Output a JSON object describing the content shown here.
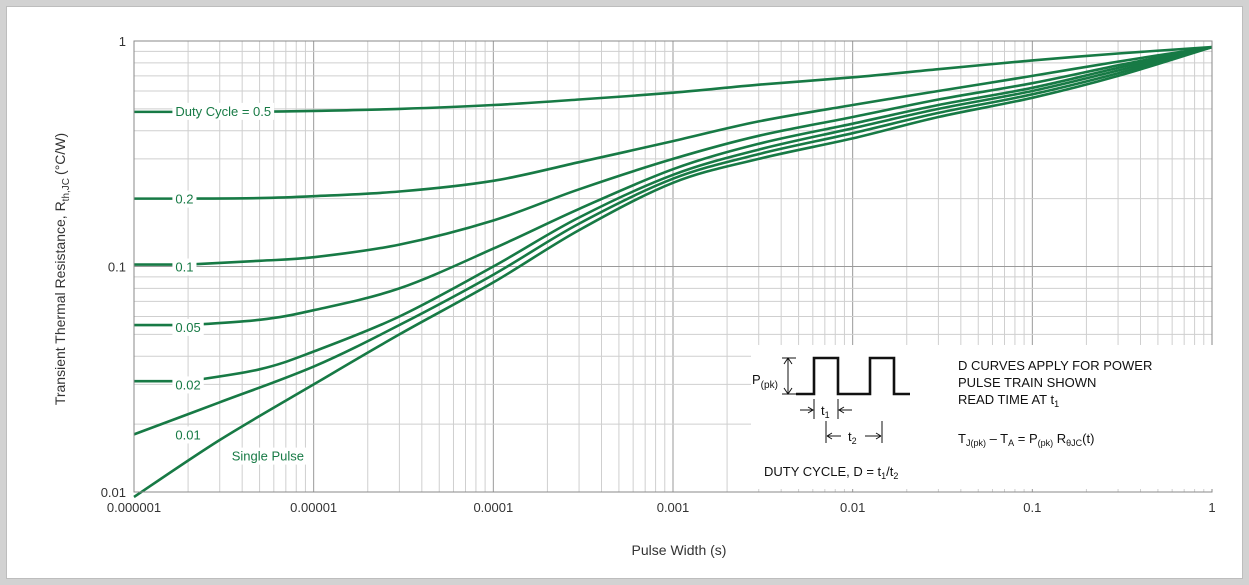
{
  "chart_data": {
    "type": "line",
    "xscale": "log",
    "yscale": "log",
    "xlim": [
      1e-06,
      1
    ],
    "ylim": [
      0.01,
      1
    ],
    "xlabel": "Pulse Width (s)",
    "ylabel": {
      "main": "Transient Thermal Resistance, R",
      "sub": "th,JC",
      "unit": "(°C/W)"
    },
    "x_ticks": [
      {
        "value": 1e-06,
        "label": "0.000001"
      },
      {
        "value": 1e-05,
        "label": "0.00001"
      },
      {
        "value": 0.0001,
        "label": "0.0001"
      },
      {
        "value": 0.001,
        "label": "0.001"
      },
      {
        "value": 0.01,
        "label": "0.01"
      },
      {
        "value": 0.1,
        "label": "0.1"
      },
      {
        "value": 1,
        "label": "1"
      }
    ],
    "y_ticks": [
      {
        "value": 0.01,
        "label": "0.01"
      },
      {
        "value": 0.1,
        "label": "0.1"
      },
      {
        "value": 1,
        "label": "1"
      }
    ],
    "grid": true,
    "curve_color": "#177a45",
    "series": [
      {
        "name": "Duty Cycle = 0.5",
        "label_x": 1.7e-06,
        "label_y": 0.49,
        "points": [
          [
            2e-06,
            0.485
          ],
          [
            5e-06,
            0.486
          ],
          [
            1e-05,
            0.49
          ],
          [
            3e-05,
            0.5
          ],
          [
            0.0001,
            0.52
          ],
          [
            0.0003,
            0.55
          ],
          [
            0.001,
            0.59
          ],
          [
            0.003,
            0.64
          ],
          [
            0.01,
            0.69
          ],
          [
            0.03,
            0.75
          ],
          [
            0.1,
            0.82
          ],
          [
            0.3,
            0.88
          ],
          [
            1,
            0.94
          ]
        ]
      },
      {
        "name": "0.2",
        "label_x": 1.7e-06,
        "label_y": 0.2,
        "points": [
          [
            2e-06,
            0.2
          ],
          [
            5e-06,
            0.201
          ],
          [
            1e-05,
            0.205
          ],
          [
            3e-05,
            0.215
          ],
          [
            0.0001,
            0.24
          ],
          [
            0.0003,
            0.29
          ],
          [
            0.001,
            0.36
          ],
          [
            0.003,
            0.44
          ],
          [
            0.01,
            0.52
          ],
          [
            0.03,
            0.6
          ],
          [
            0.1,
            0.7
          ],
          [
            0.3,
            0.81
          ],
          [
            1,
            0.94
          ]
        ]
      },
      {
        "name": "0.1",
        "label_x": 1.7e-06,
        "label_y": 0.1,
        "points": [
          [
            2e-06,
            0.102
          ],
          [
            5e-06,
            0.106
          ],
          [
            1e-05,
            0.11
          ],
          [
            3e-05,
            0.125
          ],
          [
            0.0001,
            0.16
          ],
          [
            0.0003,
            0.22
          ],
          [
            0.001,
            0.3
          ],
          [
            0.003,
            0.38
          ],
          [
            0.01,
            0.46
          ],
          [
            0.03,
            0.55
          ],
          [
            0.1,
            0.65
          ],
          [
            0.3,
            0.78
          ],
          [
            1,
            0.94
          ]
        ]
      },
      {
        "name": "0.05",
        "label_x": 1.7e-06,
        "label_y": 0.054,
        "points": [
          [
            2e-06,
            0.055
          ],
          [
            5e-06,
            0.058
          ],
          [
            1e-05,
            0.064
          ],
          [
            3e-05,
            0.08
          ],
          [
            0.0001,
            0.12
          ],
          [
            0.0003,
            0.18
          ],
          [
            0.001,
            0.27
          ],
          [
            0.003,
            0.35
          ],
          [
            0.01,
            0.43
          ],
          [
            0.03,
            0.52
          ],
          [
            0.1,
            0.62
          ],
          [
            0.3,
            0.76
          ],
          [
            1,
            0.94
          ]
        ]
      },
      {
        "name": "0.02",
        "label_x": 1.7e-06,
        "label_y": 0.03,
        "points": [
          [
            2e-06,
            0.031
          ],
          [
            5e-06,
            0.035
          ],
          [
            1e-05,
            0.042
          ],
          [
            3e-05,
            0.06
          ],
          [
            0.0001,
            0.1
          ],
          [
            0.0003,
            0.165
          ],
          [
            0.001,
            0.255
          ],
          [
            0.003,
            0.33
          ],
          [
            0.01,
            0.41
          ],
          [
            0.03,
            0.5
          ],
          [
            0.1,
            0.6
          ],
          [
            0.3,
            0.74
          ],
          [
            1,
            0.94
          ]
        ]
      },
      {
        "name": "0.01",
        "label_x": 1.7e-06,
        "label_y": 0.018,
        "points": [
          [
            1e-06,
            0.018
          ],
          [
            3e-06,
            0.025
          ],
          [
            1e-05,
            0.036
          ],
          [
            3e-05,
            0.055
          ],
          [
            0.0001,
            0.092
          ],
          [
            0.0003,
            0.155
          ],
          [
            0.001,
            0.245
          ],
          [
            0.003,
            0.315
          ],
          [
            0.01,
            0.39
          ],
          [
            0.03,
            0.48
          ],
          [
            0.1,
            0.58
          ],
          [
            0.3,
            0.72
          ],
          [
            1,
            0.94
          ]
        ]
      },
      {
        "name": "Single Pulse",
        "label_x": 3.5e-06,
        "label_y": 0.0145,
        "points": [
          [
            1e-06,
            0.0095
          ],
          [
            3e-06,
            0.017
          ],
          [
            1e-05,
            0.03
          ],
          [
            3e-05,
            0.05
          ],
          [
            0.0001,
            0.085
          ],
          [
            0.0003,
            0.145
          ],
          [
            0.001,
            0.235
          ],
          [
            0.003,
            0.3
          ],
          [
            0.01,
            0.37
          ],
          [
            0.03,
            0.46
          ],
          [
            0.1,
            0.56
          ],
          [
            0.3,
            0.7
          ],
          [
            1,
            0.94
          ]
        ]
      }
    ]
  },
  "inset": {
    "p_label": "P",
    "p_sub": "(pk)",
    "t1": "t",
    "t1_sub": "1",
    "t2": "t",
    "t2_sub": "2",
    "duty_text": "DUTY CYCLE, D = t",
    "duty_sub1": "1",
    "duty_mid": "/t",
    "duty_sub2": "2",
    "note_line1": "D CURVES APPLY FOR POWER",
    "note_line2": "PULSE TRAIN SHOWN",
    "note_line3": "READ TIME AT t",
    "note_line3_sub": "1",
    "eq": {
      "a": "T",
      "a_sub": "J(pk)",
      "b": " – T",
      "b_sub": "A",
      "c": " = P",
      "c_sub": "(pk)",
      "d": " R",
      "d_sub": "θJC",
      "e": "(t)"
    }
  }
}
